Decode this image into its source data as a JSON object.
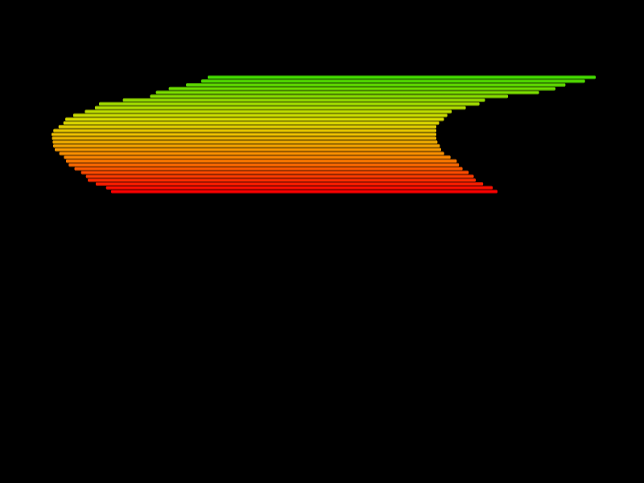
{
  "scene": {
    "background_color": "#000000",
    "line_count": 31,
    "colors": {
      "top_bright": "#44dd00",
      "yellow": "#e0e000",
      "orange": "#ff8800",
      "bottom_red": "#ff0000"
    }
  }
}
